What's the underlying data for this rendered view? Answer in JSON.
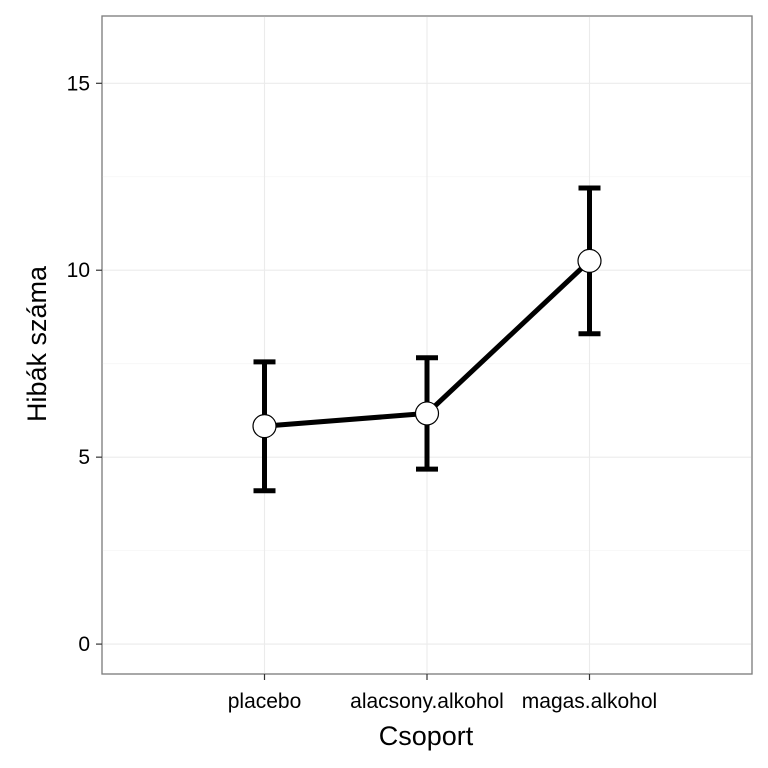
{
  "chart_data": {
    "type": "line",
    "xlabel": "Csoport",
    "ylabel": "Hibák száma",
    "categories": [
      "placebo",
      "alacsony.alkohol",
      "magas.alkohol"
    ],
    "series": [
      {
        "values": [
          5.83,
          6.17,
          10.25
        ],
        "error_low": [
          4.1,
          4.68,
          8.3
        ],
        "error_high": [
          7.55,
          7.66,
          12.2
        ]
      }
    ],
    "ylim": [
      -0.8,
      16.8
    ],
    "yticks": [
      0,
      5,
      10,
      15
    ],
    "grid": true,
    "colors": {
      "line": "#000000",
      "point_fill": "#ffffff",
      "point_stroke": "#000000"
    }
  }
}
